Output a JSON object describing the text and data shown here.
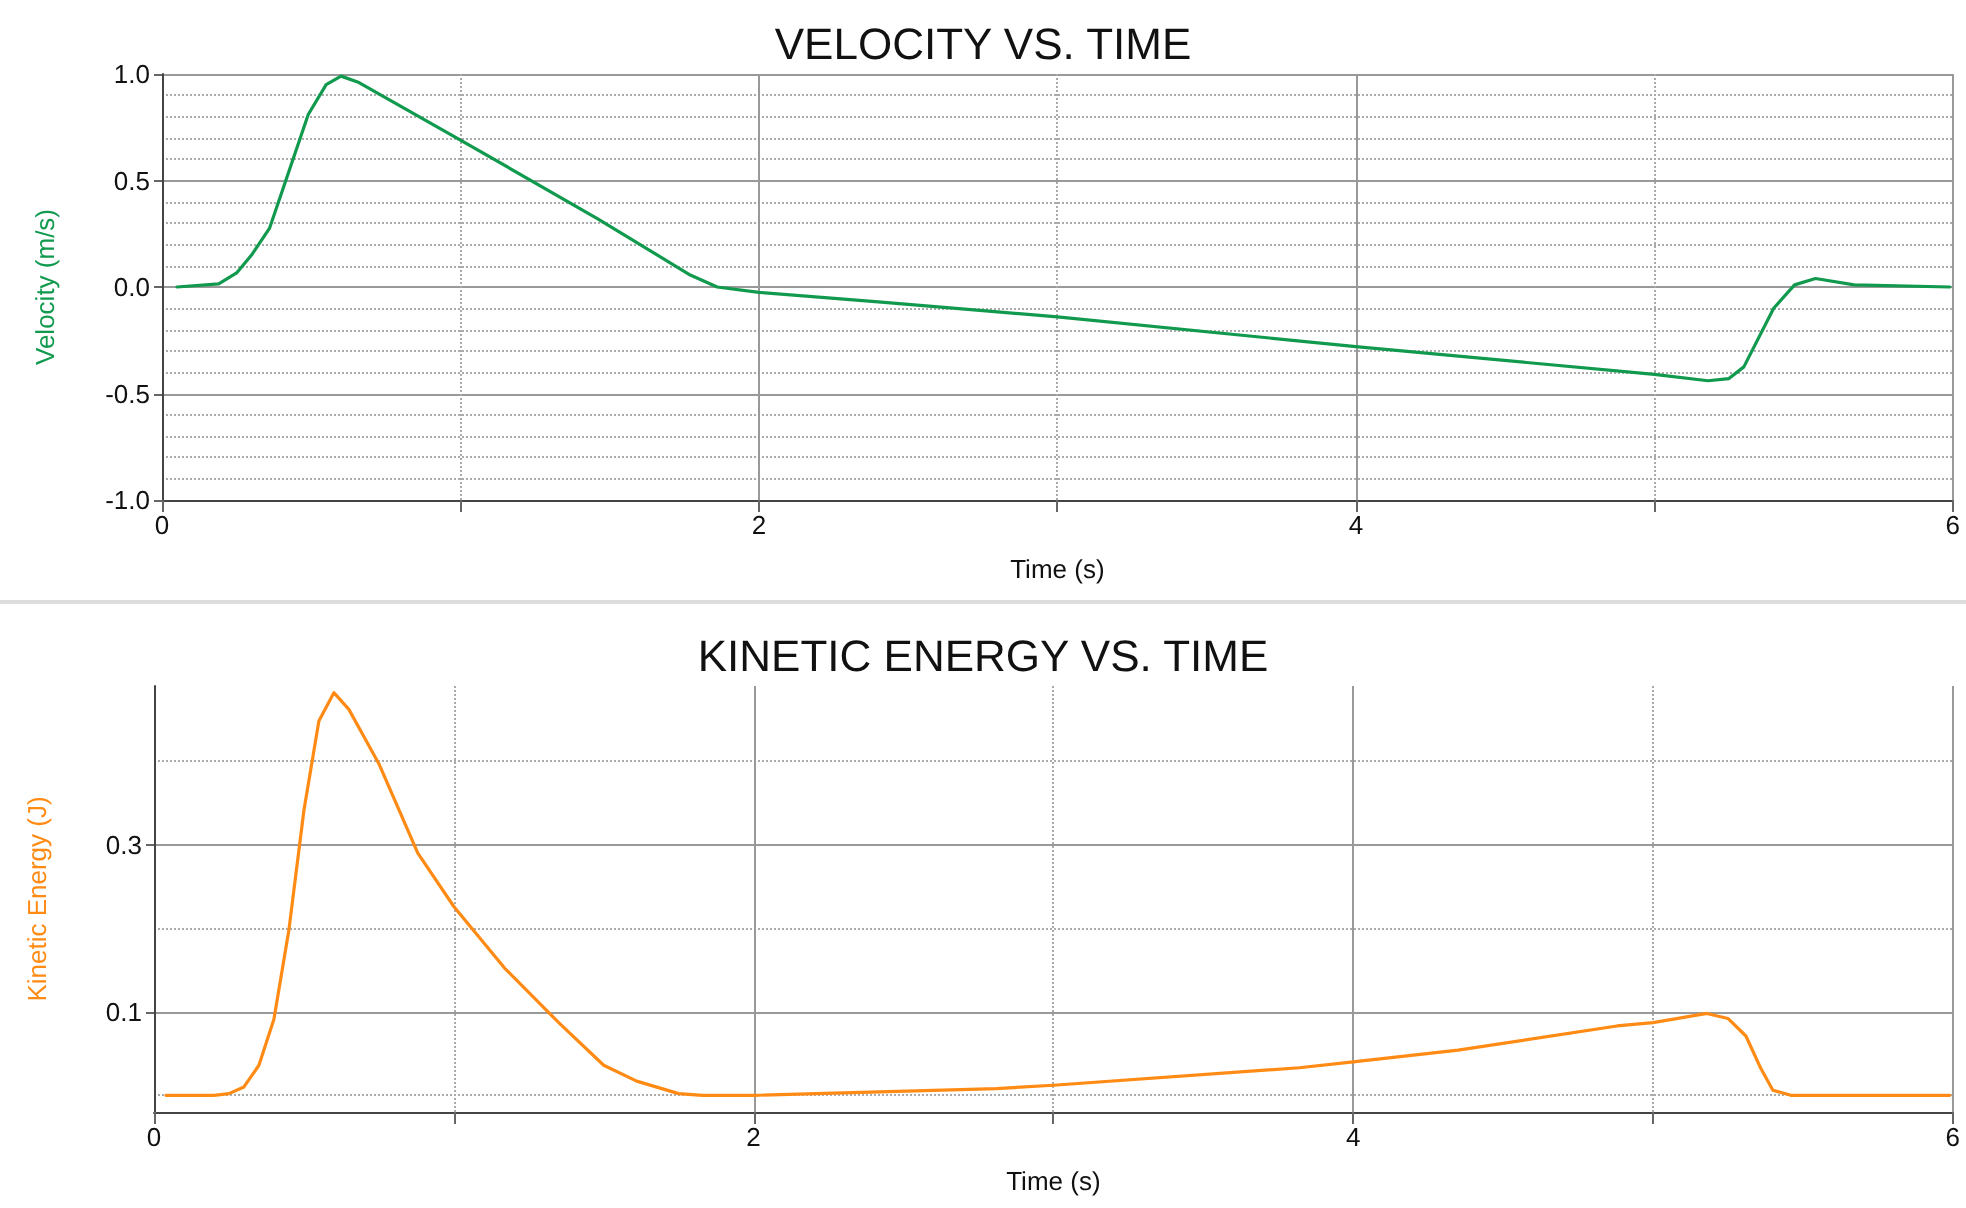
{
  "chart_data": [
    {
      "type": "line",
      "title": "VELOCITY VS. TIME",
      "xlabel": "Time (s)",
      "ylabel": "Velocity (m/s)",
      "xlim": [
        0,
        6
      ],
      "xticks": [
        0,
        {
          "value": 1,
          "label": null
        },
        2,
        {
          "value": 3,
          "label": null
        },
        4,
        {
          "value": 5,
          "label": null
        },
        6
      ],
      "ylim": [
        -1,
        1
      ],
      "yticks": [
        {
          "value": -1,
          "label": "-1.0"
        },
        {
          "value": -0.9,
          "label": null
        },
        {
          "value": -0.8,
          "label": null
        },
        {
          "value": -0.7,
          "label": null
        },
        {
          "value": -0.6,
          "label": null
        },
        {
          "value": -0.5,
          "label": "-0.5"
        },
        {
          "value": -0.4,
          "label": null
        },
        {
          "value": -0.3,
          "label": null
        },
        {
          "value": -0.2,
          "label": null
        },
        {
          "value": -0.1,
          "label": null
        },
        {
          "value": 0,
          "label": "0.0"
        },
        {
          "value": 0.1,
          "label": null
        },
        {
          "value": 0.2,
          "label": null
        },
        {
          "value": 0.3,
          "label": null
        },
        {
          "value": 0.4,
          "label": null
        },
        {
          "value": 0.5,
          "label": "0.5"
        },
        {
          "value": 0.6,
          "label": null
        },
        {
          "value": 0.7,
          "label": null
        },
        {
          "value": 0.8,
          "label": null
        },
        {
          "value": 0.9,
          "label": null
        },
        {
          "value": 1,
          "label": "1.0"
        }
      ],
      "grid": true,
      "marker": "none",
      "line_style": "solid",
      "series": [
        {
          "color": "#119a4e",
          "x": [
            0.05,
            0.19,
            0.25,
            0.3,
            0.36,
            0.41,
            0.49,
            0.55,
            0.6,
            0.66,
            1.0,
            1.46,
            1.77,
            1.86,
            2.0,
            2.4,
            2.79,
            3.0,
            4.0,
            5.0,
            5.18,
            5.25,
            5.3,
            5.4,
            5.47,
            5.54,
            5.67,
            5.99
          ],
          "values": [
            0,
            0.015,
            0.066,
            0.15,
            0.275,
            0.48,
            0.81,
            0.95,
            0.99,
            0.96,
            0.69,
            0.32,
            0.056,
            0.0,
            -0.025,
            -0.07,
            -0.116,
            -0.14,
            -0.28,
            -0.41,
            -0.44,
            -0.43,
            -0.375,
            -0.1,
            0.01,
            0.04,
            0.01,
            0.0
          ]
        }
      ]
    },
    {
      "type": "line",
      "title": "KINETIC ENERGY VS. TIME",
      "xlabel": "Time (s)",
      "ylabel": "Kinetic Energy (J)",
      "xlim": [
        0,
        6
      ],
      "xticks": [
        0,
        {
          "value": 1,
          "label": null
        },
        2,
        {
          "value": 3,
          "label": null
        },
        4,
        {
          "value": 5,
          "label": null
        },
        6
      ],
      "ylim": [
        -0.02,
        0.49
      ],
      "yticks": [
        {
          "value": 0,
          "label": null
        },
        0.1,
        {
          "value": 0.2,
          "label": null
        },
        0.3,
        {
          "value": 0.4,
          "label": null
        }
      ],
      "grid": true,
      "marker": "none",
      "line_style": "solid",
      "series": [
        {
          "color": "#ff8a14",
          "x": [
            0.04,
            0.2,
            0.25,
            0.3,
            0.35,
            0.4,
            0.45,
            0.5,
            0.55,
            0.6,
            0.65,
            0.75,
            0.88,
            1.0,
            1.17,
            1.35,
            1.5,
            1.61,
            1.75,
            1.83,
            2.0,
            2.81,
            3.0,
            3.82,
            4.0,
            4.35,
            4.88,
            5.0,
            5.18,
            5.25,
            5.31,
            5.36,
            5.4,
            5.46,
            5.99
          ],
          "values": [
            0,
            0,
            0.002,
            0.01,
            0.036,
            0.091,
            0.198,
            0.341,
            0.448,
            0.482,
            0.462,
            0.397,
            0.29,
            0.226,
            0.152,
            0.087,
            0.036,
            0.017,
            0.002,
            0,
            0,
            0.008,
            0.012,
            0.033,
            0.04,
            0.054,
            0.083,
            0.087,
            0.098,
            0.092,
            0.071,
            0.032,
            0.006,
            0,
            0
          ]
        }
      ]
    }
  ]
}
